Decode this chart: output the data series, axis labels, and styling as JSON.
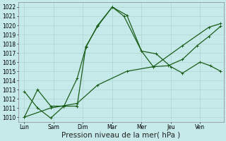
{
  "background_color": "#c6eaea",
  "grid_color": "#b0d4d4",
  "line_color": "#1a5e1a",
  "xlabel": "Pression niveau de la mer( hPa )",
  "xlabel_fontsize": 7.5,
  "ylim": [
    1009.5,
    1022.5
  ],
  "yticks": [
    1010,
    1011,
    1012,
    1013,
    1014,
    1015,
    1016,
    1017,
    1018,
    1019,
    1020,
    1021,
    1022
  ],
  "xtick_labels": [
    "Lun",
    "Sam",
    "Dim",
    "Mar",
    "Mer",
    "Jeu",
    "Ven"
  ],
  "xtick_positions": [
    0,
    1,
    2,
    3,
    4,
    5,
    6
  ],
  "xlim": [
    -0.2,
    6.8
  ],
  "series1_x": [
    0.0,
    0.45,
    0.9,
    1.35,
    1.8,
    2.1,
    2.5,
    3.0,
    3.4,
    4.0,
    4.5,
    5.0,
    5.4,
    6.0,
    6.35,
    6.7
  ],
  "series1_y": [
    1012.8,
    1011.0,
    1009.9,
    1011.2,
    1011.2,
    1017.7,
    1019.9,
    1022.0,
    1021.0,
    1017.2,
    1016.9,
    1015.5,
    1014.8,
    1016.0,
    1015.6,
    1015.0
  ],
  "series2_x": [
    0.0,
    0.45,
    0.9,
    1.35,
    1.8,
    2.1,
    2.5,
    3.0,
    3.5,
    4.0,
    4.4,
    4.9,
    5.4,
    5.9,
    6.3,
    6.7
  ],
  "series2_y": [
    1010.0,
    1013.0,
    1011.2,
    1011.2,
    1014.2,
    1017.6,
    1020.0,
    1022.0,
    1021.1,
    1017.2,
    1015.5,
    1015.6,
    1016.3,
    1017.8,
    1018.8,
    1019.9
  ],
  "series3_x": [
    0.0,
    0.9,
    1.8,
    2.5,
    3.5,
    4.4,
    5.4,
    6.3,
    6.7
  ],
  "series3_y": [
    1010.0,
    1011.0,
    1011.5,
    1013.5,
    1015.0,
    1015.5,
    1017.8,
    1019.8,
    1020.2
  ],
  "tick_fontsize": 5.5,
  "linewidth": 0.9,
  "markersize": 2.2
}
